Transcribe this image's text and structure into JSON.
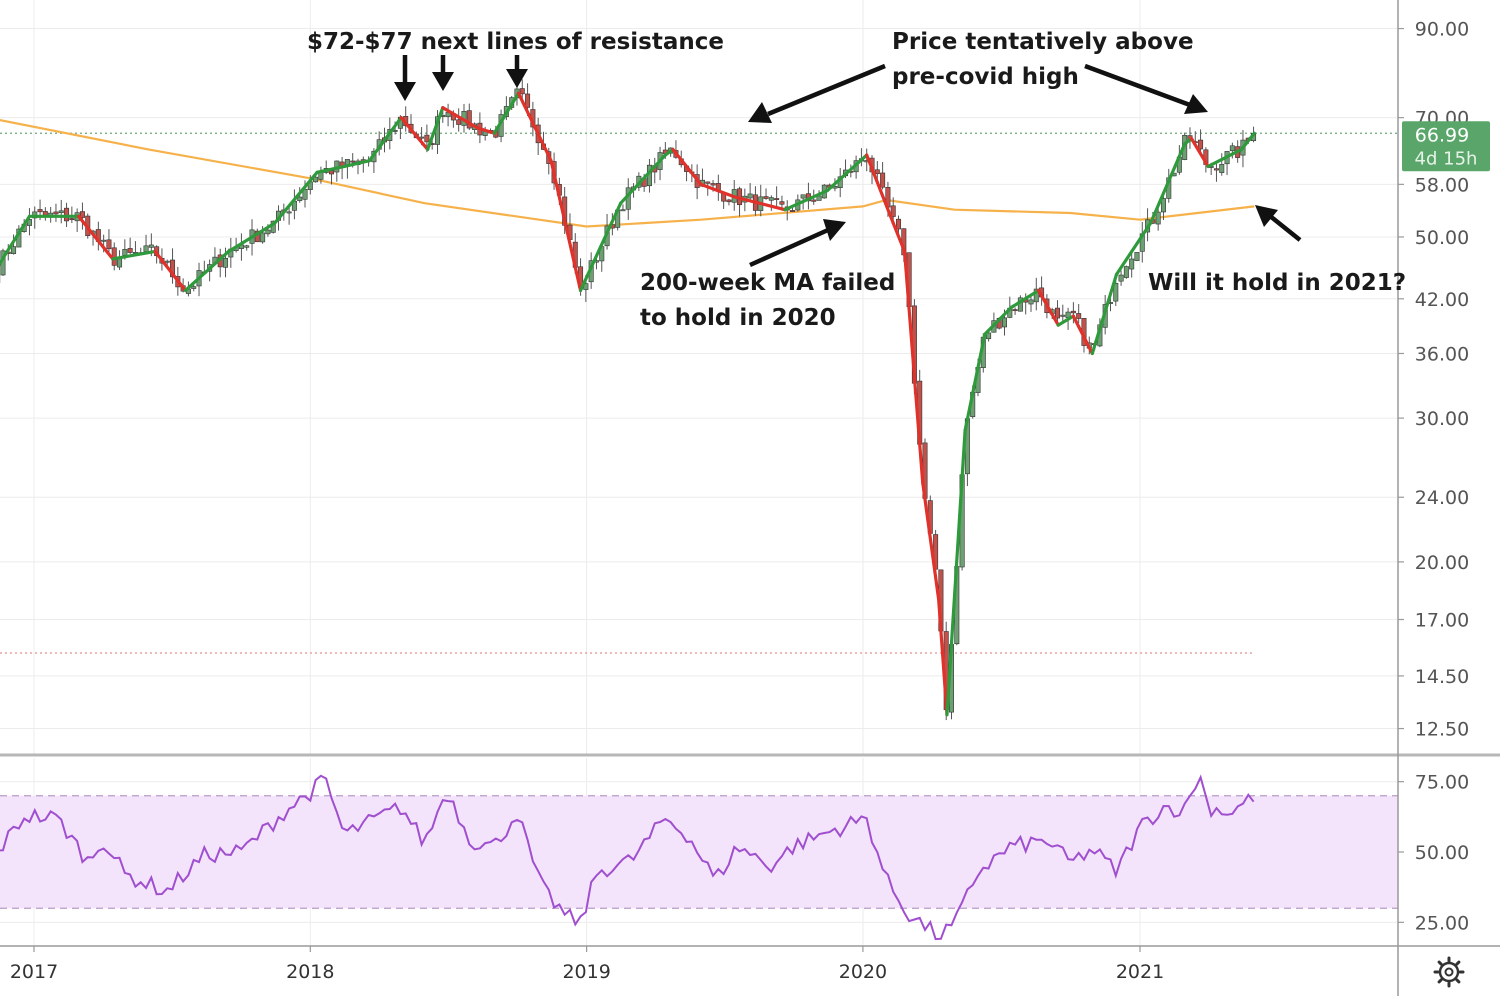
{
  "chart_data": [
    {
      "type": "candlestick",
      "scale": "log",
      "ylim": [
        11.7,
        97
      ],
      "y_ticks": [
        "90.00",
        "70.00",
        "58.00",
        "50.00",
        "42.00",
        "36.00",
        "30.00",
        "24.00",
        "20.00",
        "17.00",
        "14.50",
        "12.50"
      ],
      "x_ticks": [
        "2017",
        "2018",
        "2019",
        "2020",
        "2021"
      ],
      "last_price_label": "66.99",
      "countdown_label": "4d 15h",
      "grid": true,
      "series": [
        {
          "kind": "price_path",
          "x": [
            "2016-11-14",
            "2016-12-26",
            "2017-03-01",
            "2017-04-15",
            "2017-06-10",
            "2017-07-20",
            "2017-09-15",
            "2017-11-15",
            "2018-01-10",
            "2018-02-15",
            "2018-03-20",
            "2018-05-01",
            "2018-06-05",
            "2018-06-25",
            "2018-08-10",
            "2018-09-01",
            "2018-10-03",
            "2018-11-15",
            "2018-12-24",
            "2019-02-15",
            "2019-04-15",
            "2019-04-25",
            "2019-06-01",
            "2019-07-15",
            "2019-09-20",
            "2019-11-15",
            "2020-01-06",
            "2020-02-10",
            "2020-02-25",
            "2020-03-20",
            "2020-04-10",
            "2020-04-21",
            "2020-05-15",
            "2020-06-10",
            "2020-07-15",
            "2020-08-20",
            "2020-09-15",
            "2020-10-05",
            "2020-10-30",
            "2020-12-01",
            "2021-01-15",
            "2021-03-01",
            "2021-03-10",
            "2021-04-01",
            "2021-05-15",
            "2021-06-01"
          ],
          "y": [
            46,
            53,
            53,
            47,
            48,
            43,
            48,
            52,
            60,
            61,
            62,
            70,
            64,
            72,
            68,
            67,
            75,
            62,
            43,
            55,
            63,
            64,
            58,
            56,
            54,
            57,
            63,
            52,
            48,
            25,
            18,
            13,
            29,
            38,
            41,
            43,
            39,
            40,
            36,
            45,
            52,
            65,
            66,
            61,
            64,
            66.99
          ]
        },
        {
          "kind": "ma_200_week",
          "color": "#f6b14a",
          "x": [
            "2016-11-01",
            "2017-06-01",
            "2018-01-01",
            "2018-06-01",
            "2019-01-01",
            "2019-06-01",
            "2020-01-01",
            "2020-02-01",
            "2020-05-01",
            "2020-10-01",
            "2021-01-01",
            "2021-06-01"
          ],
          "y": [
            70,
            64,
            59,
            55,
            51.5,
            52.5,
            54.5,
            55.5,
            54,
            53.5,
            52.5,
            54.5
          ]
        },
        {
          "kind": "rsi",
          "ylim": [
            18,
            82
          ],
          "y_ticks": [
            "75.00",
            "50.00",
            "25.00"
          ],
          "band": [
            30,
            70
          ],
          "x": [
            "2016-11-14",
            "2016-12-20",
            "2017-02-01",
            "2017-03-15",
            "2017-04-01",
            "2017-05-01",
            "2017-06-25",
            "2017-08-15",
            "2017-10-01",
            "2017-12-01",
            "2018-01-05",
            "2018-01-20",
            "2018-02-15",
            "2018-03-15",
            "2018-05-01",
            "2018-06-01",
            "2018-06-30",
            "2018-08-01",
            "2018-09-01",
            "2018-10-01",
            "2018-11-01",
            "2018-12-05",
            "2018-12-24",
            "2019-01-15",
            "2019-03-01",
            "2019-04-15",
            "2019-05-15",
            "2019-06-20",
            "2019-07-20",
            "2019-09-01",
            "2019-10-01",
            "2019-11-15",
            "2020-01-06",
            "2020-02-01",
            "2020-03-01",
            "2020-04-10",
            "2020-05-01",
            "2020-06-01",
            "2020-07-15",
            "2020-09-01",
            "2020-10-01",
            "2020-10-30",
            "2020-12-01",
            "2021-01-01",
            "2021-02-01",
            "2021-03-01",
            "2021-03-20",
            "2021-04-01",
            "2021-05-01",
            "2021-06-01"
          ],
          "y": [
            50,
            63,
            62,
            46,
            55,
            42,
            36,
            49,
            50,
            65,
            72,
            76,
            56,
            60,
            66,
            53,
            72,
            54,
            52,
            64,
            38,
            27,
            25,
            43,
            47,
            62,
            56,
            40,
            52,
            45,
            52,
            57,
            62,
            40,
            28,
            20,
            24,
            43,
            52,
            54,
            46,
            51,
            43,
            59,
            66,
            65,
            78,
            66,
            64,
            70
          ]
        }
      ]
    }
  ],
  "annotations": {
    "resistance": "$72-$77 next lines of resistance",
    "covid_high_line1": "Price tentatively above",
    "covid_high_line2": "pre-covid high",
    "ma_failed_line1": "200-week MA failed",
    "ma_failed_line2": "to hold in 2020",
    "will_hold": "Will it hold in 2021?"
  },
  "colors": {
    "up": "#2e9a3c",
    "down": "#e0312a",
    "ma_200": "#f6b14a",
    "rsi_line": "#a04fcf",
    "rsi_band": "#f3e4fb",
    "price_label_bg": "#5aa66a"
  },
  "settings_icon": "gear-icon"
}
